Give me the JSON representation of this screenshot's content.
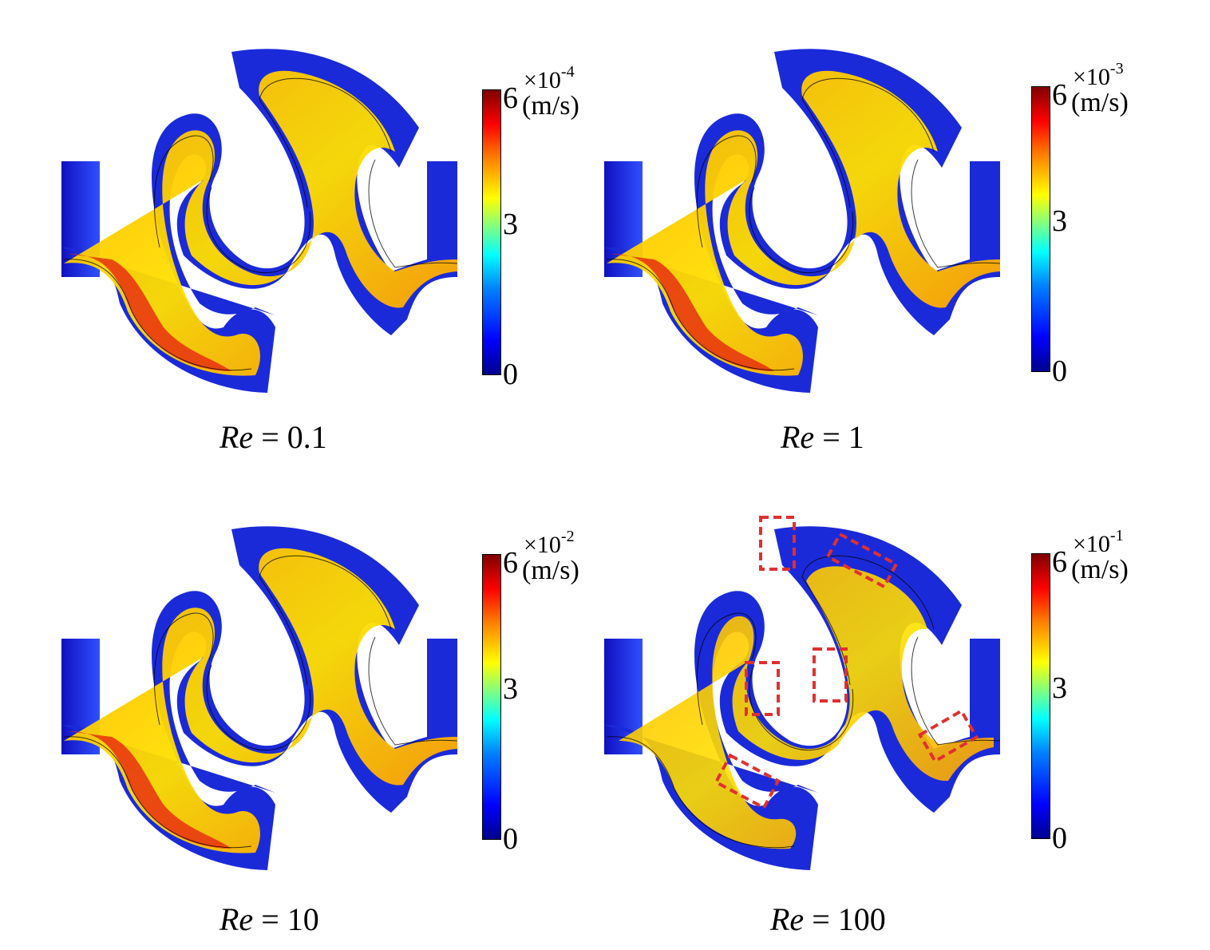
{
  "colorbar": {
    "unit": "(m/s)",
    "tick_max": "6",
    "tick_mid": "3",
    "tick_min": "0",
    "colors": [
      "#00008f",
      "#0000ff",
      "#0080ff",
      "#00ffff",
      "#80ff80",
      "#ffff00",
      "#ff8000",
      "#ff0000",
      "#800000"
    ]
  },
  "panels": [
    {
      "re_symbol": "Re",
      "re_value": "= 0.1",
      "scale_base": "6 ×10",
      "scale_exp": "-4"
    },
    {
      "re_symbol": "Re",
      "re_value": "= 1",
      "scale_base": "6 ×10",
      "scale_exp": "-3"
    },
    {
      "re_symbol": "Re",
      "re_value": "= 10",
      "scale_base": "6 ×10",
      "scale_exp": "-2"
    },
    {
      "re_symbol": "Re",
      "re_value": "= 100",
      "scale_base": "6 ×10",
      "scale_exp": "-1",
      "highlight_color": "#e03030"
    }
  ]
}
